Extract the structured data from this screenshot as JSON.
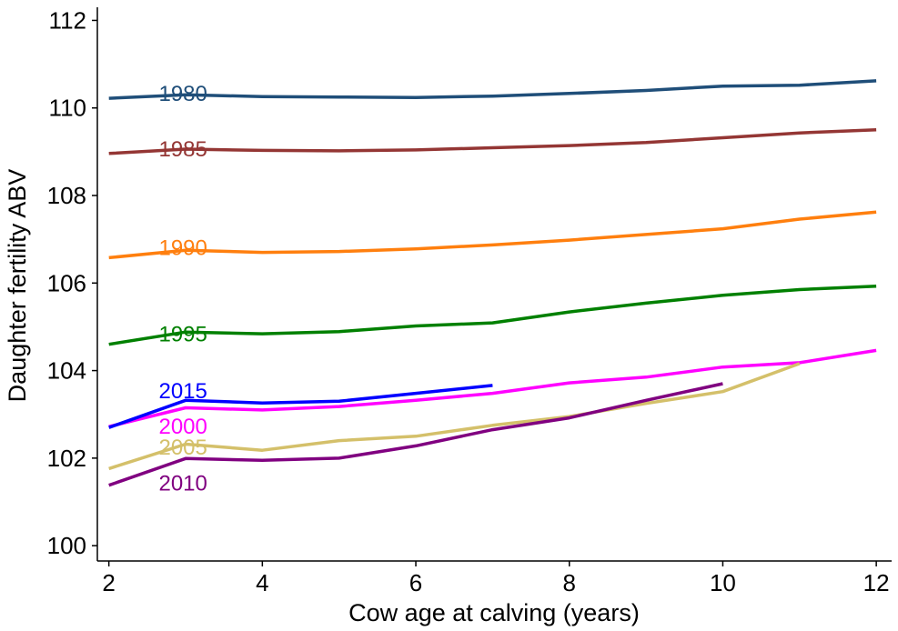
{
  "chart_data": {
    "type": "line",
    "title": "",
    "xlabel": "Cow age at calving (years)",
    "ylabel": "Daughter fertility ABV",
    "xlim": [
      1.85,
      12.2
    ],
    "ylim": [
      99.65,
      112.3
    ],
    "xticks": [
      2,
      4,
      6,
      8,
      10,
      12
    ],
    "yticks": [
      100,
      102,
      104,
      106,
      108,
      110,
      112
    ],
    "grid": false,
    "legend": "none",
    "series": [
      {
        "name": "1980",
        "color": "#1f4e79",
        "label_x": 2.65,
        "label_y": 110.35,
        "x": [
          2,
          3,
          4,
          5,
          6,
          7,
          8,
          9,
          10,
          11,
          12
        ],
        "y": [
          110.22,
          110.3,
          110.26,
          110.25,
          110.24,
          110.27,
          110.33,
          110.4,
          110.5,
          110.52,
          110.62
        ]
      },
      {
        "name": "1985",
        "color": "#943634",
        "label_x": 2.65,
        "label_y": 109.08,
        "x": [
          2,
          3,
          4,
          5,
          6,
          7,
          8,
          9,
          10,
          11,
          12
        ],
        "y": [
          108.96,
          109.06,
          109.03,
          109.02,
          109.04,
          109.09,
          109.14,
          109.21,
          109.32,
          109.43,
          109.5
        ]
      },
      {
        "name": "1990",
        "color": "#ff7f0e",
        "label_x": 2.65,
        "label_y": 106.83,
        "x": [
          2,
          3,
          4,
          5,
          6,
          7,
          8,
          9,
          10,
          11,
          12
        ],
        "y": [
          106.58,
          106.75,
          106.7,
          106.72,
          106.78,
          106.87,
          106.98,
          107.11,
          107.24,
          107.46,
          107.62
        ]
      },
      {
        "name": "1995",
        "color": "#008000",
        "label_x": 2.65,
        "label_y": 104.85,
        "x": [
          2,
          3,
          4,
          5,
          6,
          7,
          8,
          9,
          10,
          11,
          12
        ],
        "y": [
          104.6,
          104.88,
          104.84,
          104.89,
          105.02,
          105.09,
          105.34,
          105.54,
          105.72,
          105.85,
          105.93
        ]
      },
      {
        "name": "2000",
        "color": "#ff00ff",
        "label_x": 2.65,
        "label_y": 102.75,
        "x": [
          2,
          3,
          4,
          5,
          6,
          7,
          8,
          9,
          10,
          11,
          12
        ],
        "y": [
          102.72,
          103.15,
          103.1,
          103.18,
          103.32,
          103.48,
          103.72,
          103.85,
          104.08,
          104.18,
          104.46
        ]
      },
      {
        "name": "2005",
        "color": "#d4c06a",
        "label_x": 2.65,
        "label_y": 102.27,
        "x": [
          2,
          3,
          4,
          5,
          6,
          7,
          8,
          9,
          10,
          11
        ],
        "y": [
          101.76,
          102.32,
          102.18,
          102.4,
          102.5,
          102.75,
          102.95,
          103.25,
          103.52,
          104.16
        ]
      },
      {
        "name": "2010",
        "color": "#800080",
        "label_x": 2.65,
        "label_y": 101.45,
        "x": [
          2,
          3,
          4,
          5,
          6,
          7,
          8,
          9,
          10
        ],
        "y": [
          101.38,
          101.99,
          101.95,
          102.0,
          102.28,
          102.65,
          102.92,
          103.32,
          103.7
        ]
      },
      {
        "name": "2015",
        "color": "#0000ff",
        "label_x": 2.65,
        "label_y": 103.55,
        "x": [
          2,
          3,
          4,
          5,
          6,
          7
        ],
        "y": [
          102.7,
          103.32,
          103.26,
          103.3,
          103.48,
          103.66
        ]
      }
    ]
  }
}
